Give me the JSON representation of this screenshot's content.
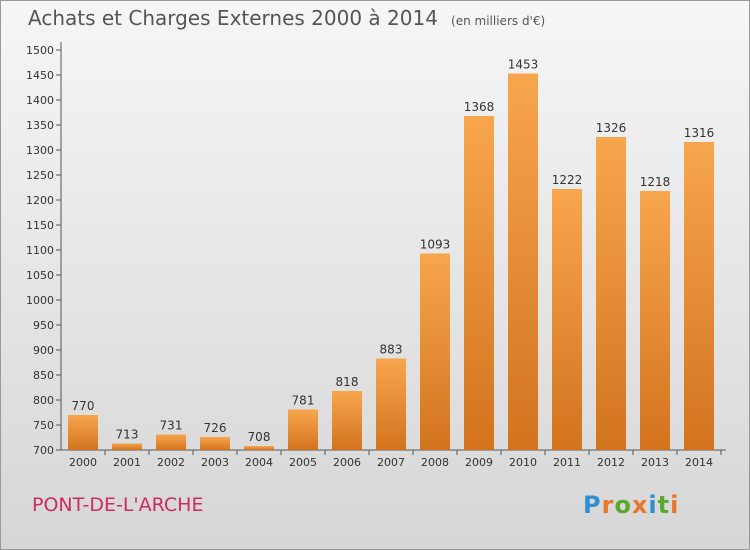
{
  "title": "Achats et Charges Externes 2000 à 2014",
  "unit_note": "(en milliers d'€)",
  "place": "PONT-DE-L'ARCHE",
  "logo": "Proxiti",
  "colors": {
    "bar_light": "#f7a64e",
    "bar_dark": "#d3731e",
    "place_text": "#cc2a66",
    "logo_letters": [
      "#2f8fd0",
      "#e8762a",
      "#5aa82e",
      "#e8762a",
      "#2f8fd0",
      "#5aa82e",
      "#e8762a"
    ]
  },
  "chart_data": {
    "type": "bar",
    "title": "Achats et Charges Externes 2000 à 2014",
    "subtitle": "(en milliers d'€)",
    "categories": [
      "2000",
      "2001",
      "2002",
      "2003",
      "2004",
      "2005",
      "2006",
      "2007",
      "2008",
      "2009",
      "2010",
      "2011",
      "2012",
      "2013",
      "2014"
    ],
    "values": [
      770,
      713,
      731,
      726,
      708,
      781,
      818,
      883,
      1093,
      1368,
      1453,
      1222,
      1326,
      1218,
      1316
    ],
    "ylim": [
      700,
      1500
    ],
    "yticks": [
      700,
      750,
      800,
      850,
      900,
      950,
      1000,
      1050,
      1100,
      1150,
      1200,
      1250,
      1300,
      1350,
      1400,
      1450,
      1500
    ],
    "grid": false,
    "legend": "none"
  }
}
